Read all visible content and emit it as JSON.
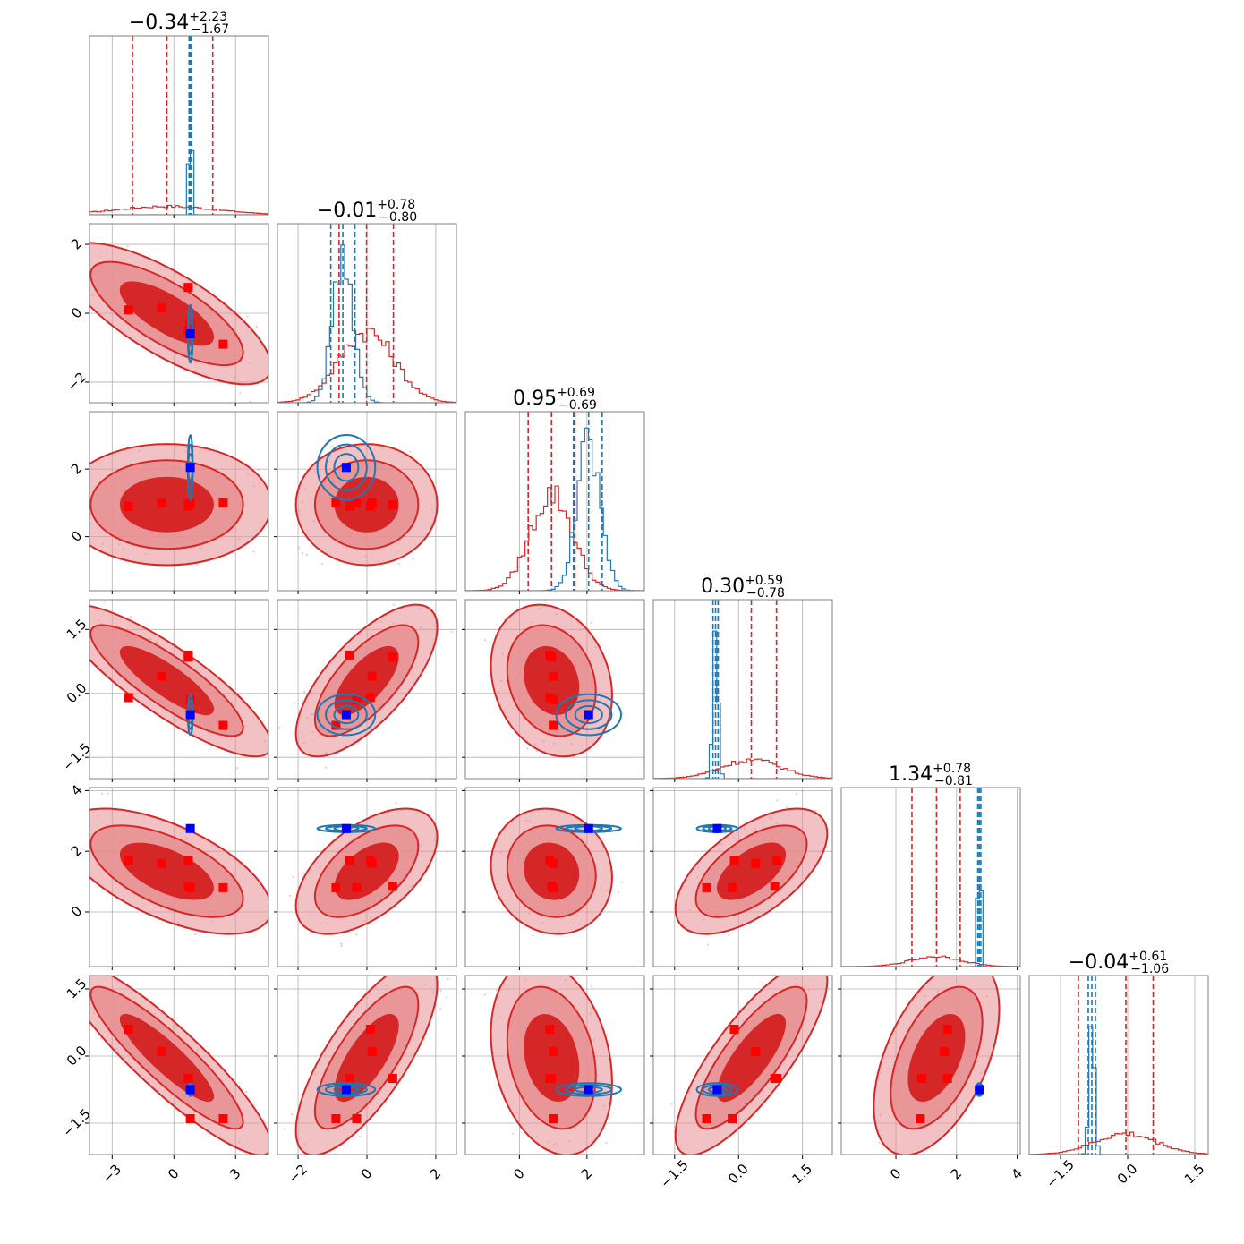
{
  "colors": {
    "red": "#d62728",
    "red_light": "#e88e91",
    "blue": "#1f77b4",
    "blue_marker": "#0000ff",
    "red_marker": "#ff0000",
    "grid": "#b0b0b0",
    "frame": "#808080"
  },
  "chart_data": {
    "type": "corner",
    "grid": true,
    "n_params": 6,
    "params": [
      {
        "title": {
          "median": "−0.34",
          "plus": "+2.23",
          "minus": "−1.67"
        },
        "range": [
          -4.1,
          4.6
        ],
        "ticks": [
          -3,
          0,
          3
        ],
        "tick_labels": [
          "−3",
          "0",
          "3"
        ],
        "red": {
          "q16": -2.01,
          "q50": -0.34,
          "q84": 1.89,
          "hist_peak": 0.05,
          "hist_width": 2.4
        },
        "blue": {
          "q16": 0.74,
          "q50": 0.8,
          "q84": 0.86,
          "hist_peak": 0.78,
          "hist_width": 0.07
        }
      },
      {
        "title": {
          "median": "−0.01",
          "plus": "+0.78",
          "minus": "−0.80"
        },
        "range": [
          -2.6,
          2.6
        ],
        "ticks": [
          -2,
          0,
          2
        ],
        "tick_labels": [
          "−2",
          "0",
          "2"
        ],
        "red": {
          "q16": -0.81,
          "q50": -0.01,
          "q84": 0.77,
          "hist_peak": 0.42,
          "hist_width": 0.8
        },
        "blue": {
          "q16": -1.05,
          "q50": -0.7,
          "q84": -0.35,
          "hist_peak": 0.85,
          "hist_width": 0.3
        }
      },
      {
        "title": {
          "median": "0.95",
          "plus": "+0.69",
          "minus": "−0.69"
        },
        "range": [
          -1.6,
          3.7
        ],
        "ticks": [
          0,
          2
        ],
        "tick_labels": [
          "0",
          "2"
        ],
        "red": {
          "q16": 0.26,
          "q50": 0.95,
          "q84": 1.64,
          "hist_peak": 0.57,
          "hist_width": 0.62
        },
        "blue": {
          "q16": 1.6,
          "q50": 2.05,
          "q84": 2.45,
          "hist_peak": 0.86,
          "hist_width": 0.35
        }
      },
      {
        "title": {
          "median": "0.30",
          "plus": "+0.59",
          "minus": "−0.78"
        },
        "range": [
          -2.0,
          2.2
        ],
        "ticks": [
          -1.5,
          0.0,
          1.5
        ],
        "tick_labels": [
          "−1.5",
          "0.0",
          "1.5"
        ],
        "red": {
          "q16": -0.48,
          "q50": 0.3,
          "q84": 0.89,
          "hist_peak": 0.11,
          "hist_width": 0.7
        },
        "blue": {
          "q16": -0.6,
          "q50": -0.54,
          "q84": -0.48,
          "hist_peak": 0.9,
          "hist_width": 0.06
        }
      },
      {
        "title": {
          "median": "1.34",
          "plus": "+0.78",
          "minus": "−0.81"
        },
        "range": [
          -1.8,
          4.1
        ],
        "ticks": [
          0,
          2,
          4
        ],
        "tick_labels": [
          "0",
          "2",
          "4"
        ],
        "red": {
          "q16": 0.53,
          "q50": 1.34,
          "q84": 2.12,
          "hist_peak": 0.06,
          "hist_width": 0.85
        },
        "blue": {
          "q16": 2.7,
          "q50": 2.75,
          "q84": 2.8,
          "hist_peak": 0.9,
          "hist_width": 0.05
        }
      },
      {
        "title": {
          "median": "−0.04",
          "plus": "+0.61",
          "minus": "−1.06"
        },
        "range": [
          -2.2,
          1.8
        ],
        "ticks": [
          -1.5,
          0.0,
          1.5
        ],
        "tick_labels": [
          "−1.5",
          "0.0",
          "1.5"
        ],
        "red": {
          "q16": -1.1,
          "q50": -0.04,
          "q84": 0.57,
          "hist_peak": 0.12,
          "hist_width": 0.7
        },
        "blue": {
          "q16": -0.88,
          "q50": -0.8,
          "q84": -0.72,
          "hist_peak": 0.82,
          "hist_width": 0.06
        }
      }
    ],
    "red_markers": [
      [
        -2.2,
        0.1,
        0.9,
        -0.1,
        1.7,
        0.6
      ],
      [
        -0.6,
        0.15,
        1.0,
        0.4,
        1.6,
        0.1
      ],
      [
        0.7,
        -0.5,
        0.9,
        0.9,
        1.7,
        -0.5
      ],
      [
        2.4,
        -0.9,
        1.0,
        -0.75,
        0.8,
        -1.4
      ],
      [
        0.8,
        -0.3,
        1.0,
        -0.15,
        0.8,
        -1.4
      ],
      [
        0.7,
        0.75,
        0.95,
        0.85,
        0.85,
        -0.5
      ]
    ],
    "blue_marker": [
      0.8,
      -0.6,
      2.05,
      -0.5,
      2.75,
      -0.75
    ],
    "red_corr": [
      [],
      [
        -0.75
      ],
      [
        0.0,
        0.0
      ],
      [
        -0.85,
        0.7,
        -0.2
      ],
      [
        -0.6,
        0.55,
        -0.1,
        0.6
      ],
      [
        -0.9,
        0.75,
        -0.25,
        0.8,
        0.5
      ]
    ],
    "blue_spread": [
      0.05,
      0.35,
      0.4,
      0.2,
      0.05,
      0.06
    ]
  }
}
